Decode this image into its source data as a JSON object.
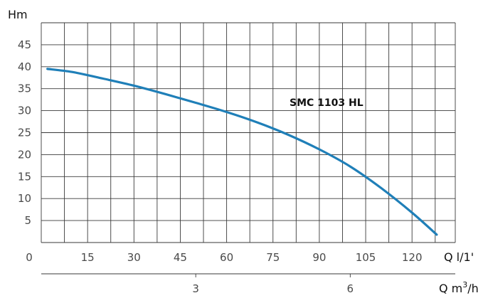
{
  "chart_data": {
    "type": "line",
    "ylabel": "Hm",
    "xlabel": "Q l/1'",
    "xlabel2": "Q m³/h",
    "xlabel2_base": "Q m",
    "xlabel2_sup": "3",
    "xlabel2_tail": "/h",
    "xlim": [
      0,
      134
    ],
    "ylim": [
      0,
      50
    ],
    "y_ticks": [
      5,
      10,
      15,
      20,
      25,
      30,
      35,
      40,
      45
    ],
    "y_tick_labels": [
      "5",
      "10",
      "15",
      "20",
      "25",
      "30",
      "35",
      "40",
      "45"
    ],
    "x_ticks": [
      15,
      30,
      45,
      60,
      75,
      90,
      105,
      120
    ],
    "x_tick_labels": [
      "15",
      "30",
      "45",
      "60",
      "75",
      "90",
      "105",
      "120"
    ],
    "origin_label": "0",
    "x2_ticks": [
      3,
      6
    ],
    "x2_tick_labels": [
      "3",
      "6"
    ],
    "grid": true,
    "series": [
      {
        "name": "SMC 1103 HL",
        "color": "#1f7fb8",
        "x": [
          2,
          10,
          20,
          30,
          40,
          50,
          60,
          70,
          80,
          90,
          100,
          110,
          120,
          128
        ],
        "y": [
          39.5,
          38.8,
          37.3,
          35.7,
          33.8,
          31.8,
          29.7,
          27.3,
          24.5,
          21.2,
          17.3,
          12.4,
          6.8,
          1.8
        ]
      }
    ]
  }
}
